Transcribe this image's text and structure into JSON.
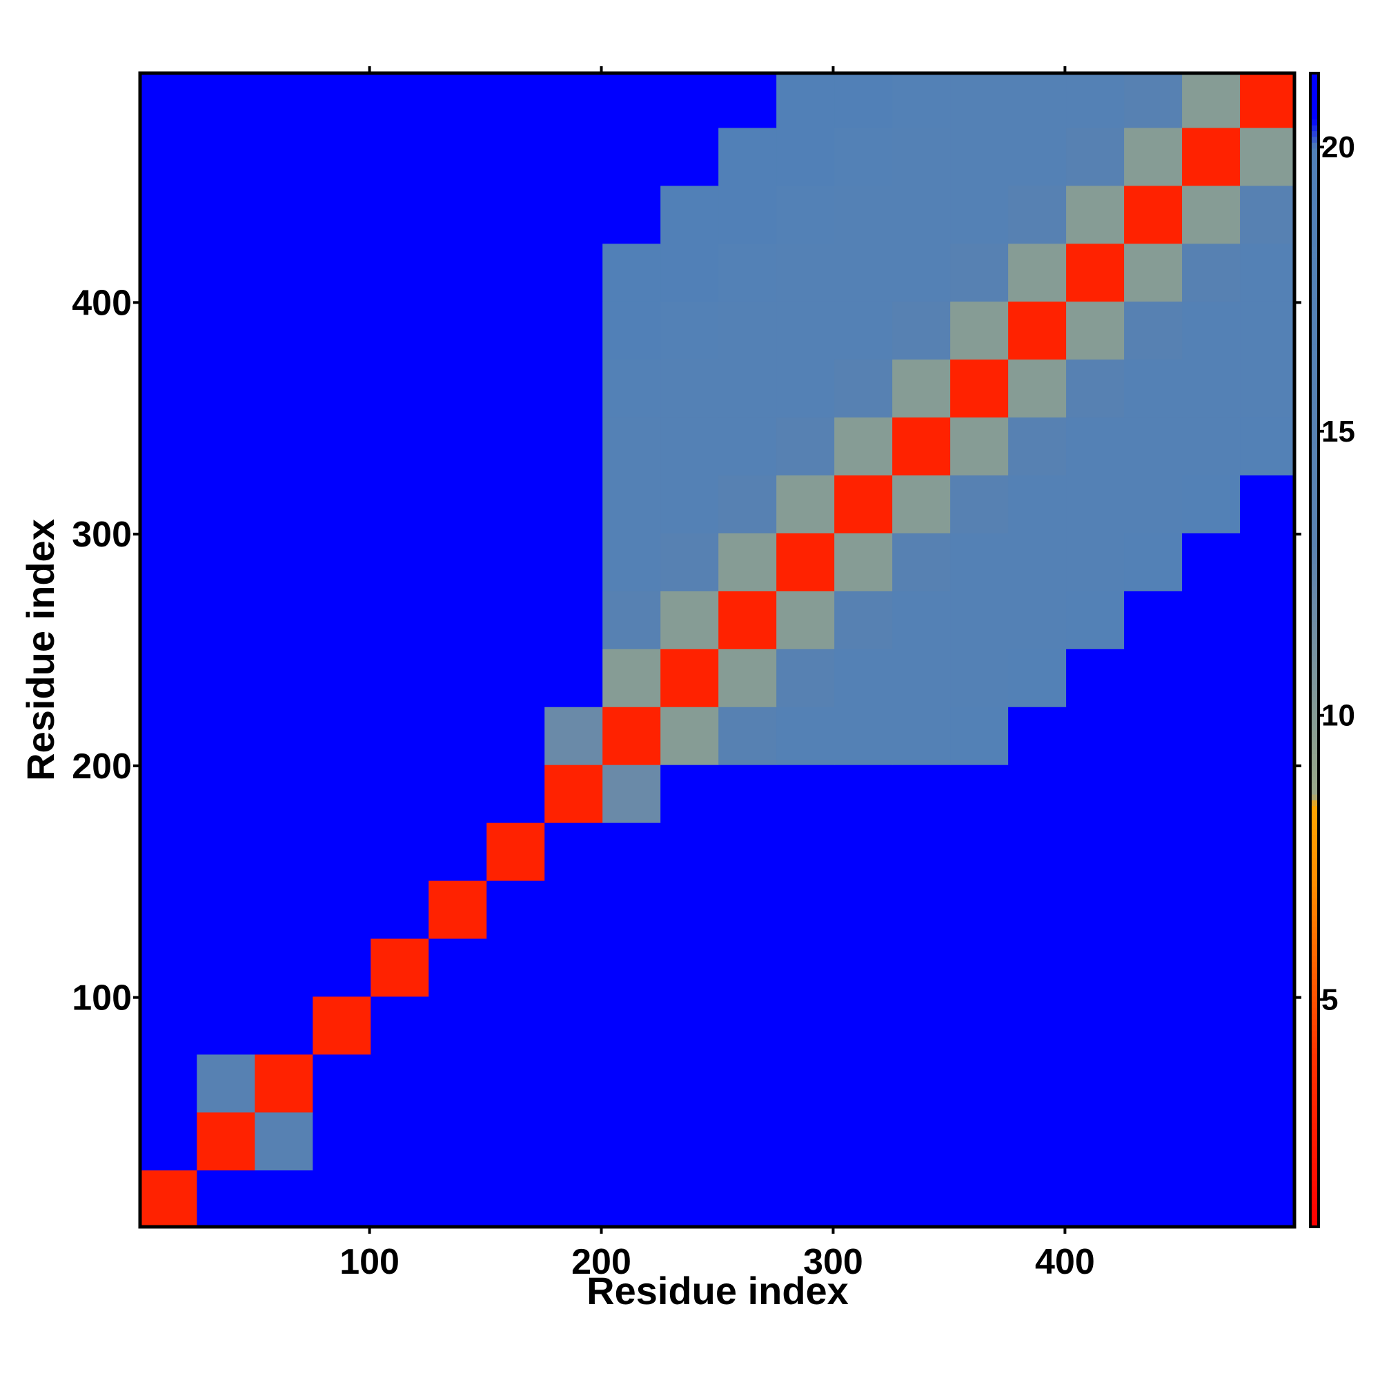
{
  "chart_data": {
    "type": "heatmap",
    "xlabel": "Residue index",
    "ylabel": "Residue index",
    "x": [
      13,
      38,
      63,
      88,
      113,
      138,
      163,
      188,
      213,
      238,
      263,
      288,
      313,
      338,
      363,
      388,
      413,
      438,
      463,
      488
    ],
    "y": [
      13,
      38,
      63,
      88,
      113,
      138,
      163,
      188,
      213,
      238,
      263,
      288,
      313,
      338,
      363,
      388,
      413,
      438,
      463,
      488
    ],
    "values": [
      [
        3,
        21,
        21,
        21,
        21,
        21,
        21,
        21,
        21,
        21,
        21,
        21,
        21,
        21,
        21,
        21,
        21,
        21,
        21,
        21
      ],
      [
        21,
        3,
        15,
        21,
        21,
        21,
        21,
        21,
        21,
        21,
        21,
        21,
        21,
        21,
        21,
        21,
        21,
        21,
        21,
        21
      ],
      [
        21,
        15,
        3,
        21,
        21,
        21,
        21,
        21,
        21,
        21,
        21,
        21,
        21,
        21,
        21,
        21,
        21,
        21,
        21,
        21
      ],
      [
        21,
        21,
        21,
        3,
        21,
        21,
        21,
        21,
        21,
        21,
        21,
        21,
        21,
        21,
        21,
        21,
        21,
        21,
        21,
        21
      ],
      [
        21,
        21,
        21,
        21,
        3,
        21,
        21,
        21,
        21,
        21,
        21,
        21,
        21,
        21,
        21,
        21,
        21,
        21,
        21,
        21
      ],
      [
        21,
        21,
        21,
        21,
        21,
        3,
        21,
        21,
        21,
        21,
        21,
        21,
        21,
        21,
        21,
        21,
        21,
        21,
        21,
        21
      ],
      [
        21,
        21,
        21,
        21,
        21,
        21,
        3,
        21,
        21,
        21,
        21,
        21,
        21,
        21,
        21,
        21,
        21,
        21,
        21,
        21
      ],
      [
        21,
        21,
        21,
        21,
        21,
        21,
        21,
        3,
        12,
        21,
        21,
        21,
        21,
        21,
        21,
        21,
        21,
        21,
        21,
        21
      ],
      [
        21,
        21,
        21,
        21,
        21,
        21,
        21,
        12,
        3,
        10,
        15,
        17,
        17,
        17,
        18,
        21,
        21,
        21,
        21,
        21
      ],
      [
        21,
        21,
        21,
        21,
        21,
        21,
        21,
        21,
        10,
        3,
        10,
        15,
        17,
        17,
        17,
        18,
        21,
        21,
        21,
        21
      ],
      [
        21,
        21,
        21,
        21,
        21,
        21,
        21,
        21,
        15,
        10,
        3,
        10,
        15,
        17,
        17,
        17,
        18,
        21,
        21,
        21
      ],
      [
        21,
        21,
        21,
        21,
        21,
        21,
        21,
        21,
        17,
        15,
        10,
        3,
        10,
        15,
        17,
        17,
        17,
        18,
        21,
        21
      ],
      [
        21,
        21,
        21,
        21,
        21,
        21,
        21,
        21,
        17,
        17,
        15,
        10,
        3,
        10,
        15,
        17,
        17,
        17,
        18,
        21
      ],
      [
        21,
        21,
        21,
        21,
        21,
        21,
        21,
        21,
        17,
        17,
        17,
        15,
        10,
        3,
        10,
        15,
        17,
        17,
        17,
        18
      ],
      [
        21,
        21,
        21,
        21,
        21,
        21,
        21,
        21,
        18,
        17,
        17,
        17,
        15,
        10,
        3,
        10,
        15,
        17,
        17,
        17
      ],
      [
        21,
        21,
        21,
        21,
        21,
        21,
        21,
        21,
        19,
        18,
        17,
        17,
        17,
        15,
        10,
        3,
        10,
        15,
        17,
        17
      ],
      [
        21,
        21,
        21,
        21,
        21,
        21,
        21,
        21,
        19,
        19,
        18,
        17,
        17,
        17,
        15,
        10,
        3,
        10,
        15,
        17
      ],
      [
        21,
        21,
        21,
        21,
        21,
        21,
        21,
        21,
        21,
        19,
        19,
        18,
        17,
        17,
        17,
        15,
        10,
        3,
        10,
        15
      ],
      [
        21,
        21,
        21,
        21,
        21,
        21,
        21,
        21,
        21,
        21,
        19,
        19,
        18,
        17,
        17,
        17,
        15,
        10,
        3,
        10
      ],
      [
        21,
        21,
        21,
        21,
        21,
        21,
        21,
        21,
        21,
        21,
        21,
        19,
        19,
        18,
        17,
        17,
        17,
        15,
        10,
        3
      ]
    ],
    "xlim": [
      1,
      499
    ],
    "ylim": [
      1,
      499
    ],
    "xticks": [
      100,
      200,
      300,
      400
    ],
    "yticks": [
      100,
      200,
      300,
      400
    ],
    "clim": [
      1,
      21.3
    ],
    "cticks": [
      5,
      10,
      15,
      20
    ],
    "colorscale": [
      {
        "value": 1,
        "color": "#ff0000"
      },
      {
        "value": 4,
        "color": "#ff3300"
      },
      {
        "value": 7,
        "color": "#ff8c00"
      },
      {
        "value": 8.4,
        "color": "#ffa500"
      },
      {
        "value": 8.6,
        "color": "#9aa888"
      },
      {
        "value": 12,
        "color": "#6a8aa8"
      },
      {
        "value": 13,
        "color": "#5a82b0"
      },
      {
        "value": 20,
        "color": "#5080b8"
      },
      {
        "value": 20.5,
        "color": "#0000ff"
      },
      {
        "value": 21.3,
        "color": "#0000ff"
      }
    ]
  }
}
